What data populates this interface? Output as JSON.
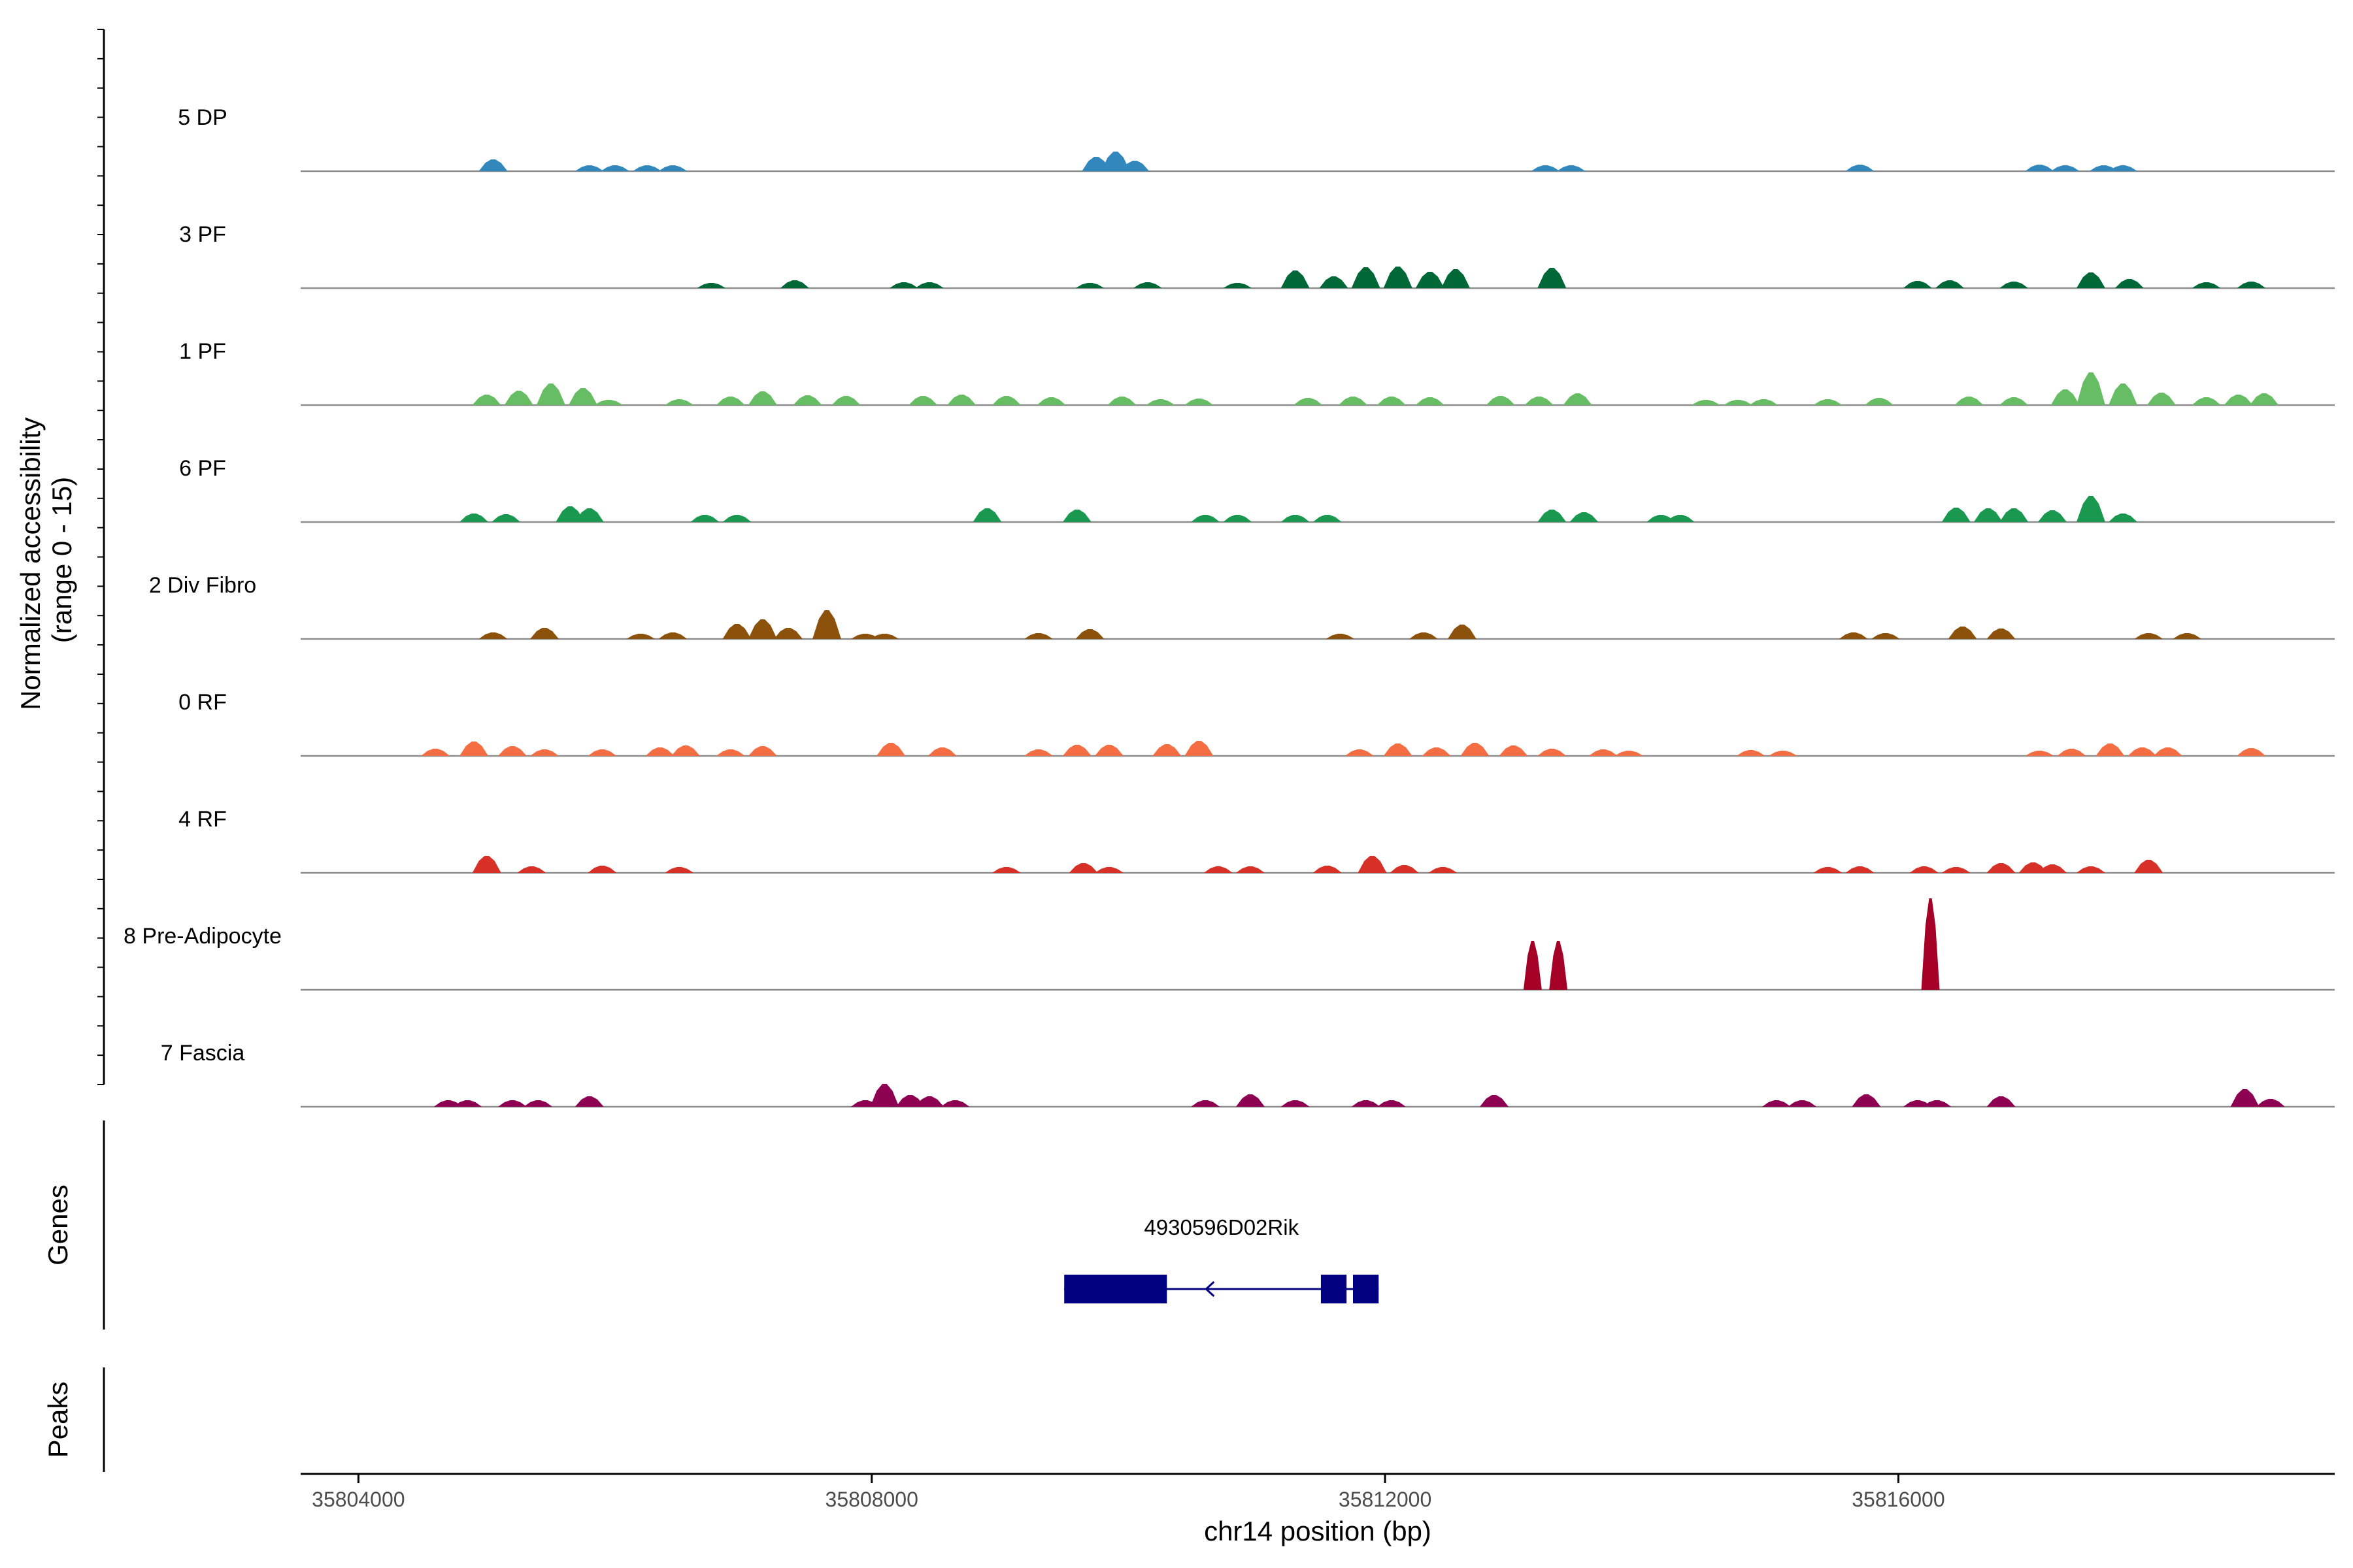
{
  "chart_data": {
    "type": "area",
    "title": "",
    "ylabel": "Normalized accessibility",
    "ylabel_range": "(range 0 - 15)",
    "ylim": [
      0,
      15
    ],
    "xlabel": "chr14 position (bp)",
    "xlim": [
      35803550,
      35819400
    ],
    "xticks": [
      35804000,
      35808000,
      35812000,
      35816000
    ],
    "xtick_labels": [
      "35804000",
      "35808000",
      "35812000",
      "35816000"
    ],
    "series": [
      {
        "name": "5 DP",
        "color": "#3288BD",
        "peaks": [
          [
            35805050,
            1.8
          ],
          [
            35805800,
            0.9
          ],
          [
            35806000,
            0.9
          ],
          [
            35806250,
            0.9
          ],
          [
            35806450,
            0.9
          ],
          [
            35809750,
            2.2
          ],
          [
            35809900,
            3.0
          ],
          [
            35810050,
            1.6
          ],
          [
            35813250,
            0.9
          ],
          [
            35813450,
            0.9
          ],
          [
            35815700,
            1.0
          ],
          [
            35817100,
            1.0
          ],
          [
            35817300,
            0.9
          ],
          [
            35817600,
            0.9
          ],
          [
            35817750,
            0.9
          ]
        ]
      },
      {
        "name": "3 PF",
        "color": "#006837",
        "peaks": [
          [
            35806750,
            0.8
          ],
          [
            35807400,
            1.2
          ],
          [
            35808250,
            0.9
          ],
          [
            35808450,
            0.9
          ],
          [
            35809700,
            0.8
          ],
          [
            35810150,
            0.9
          ],
          [
            35810850,
            0.8
          ],
          [
            35811300,
            2.7
          ],
          [
            35811600,
            1.8
          ],
          [
            35811850,
            3.2
          ],
          [
            35812100,
            3.3
          ],
          [
            35812350,
            2.5
          ],
          [
            35812550,
            2.9
          ],
          [
            35813300,
            3.1
          ],
          [
            35816150,
            1.1
          ],
          [
            35816400,
            1.2
          ],
          [
            35816900,
            1.0
          ],
          [
            35817500,
            2.4
          ],
          [
            35817800,
            1.4
          ],
          [
            35818400,
            0.9
          ],
          [
            35818750,
            1.0
          ]
        ]
      },
      {
        "name": "1 PF",
        "color": "#66BD63",
        "peaks": [
          [
            35805000,
            1.6
          ],
          [
            35805250,
            2.2
          ],
          [
            35805500,
            3.3
          ],
          [
            35805750,
            2.6
          ],
          [
            35805950,
            0.8
          ],
          [
            35806500,
            0.9
          ],
          [
            35806900,
            1.3
          ],
          [
            35807150,
            2.1
          ],
          [
            35807500,
            1.5
          ],
          [
            35807800,
            1.4
          ],
          [
            35808400,
            1.4
          ],
          [
            35808700,
            1.6
          ],
          [
            35809050,
            1.4
          ],
          [
            35809400,
            1.2
          ],
          [
            35809950,
            1.3
          ],
          [
            35810250,
            0.9
          ],
          [
            35810550,
            1.0
          ],
          [
            35811400,
            1.1
          ],
          [
            35811750,
            1.3
          ],
          [
            35812050,
            1.3
          ],
          [
            35812350,
            1.2
          ],
          [
            35812900,
            1.4
          ],
          [
            35813200,
            1.3
          ],
          [
            35813500,
            1.8
          ],
          [
            35814500,
            0.8
          ],
          [
            35814750,
            0.8
          ],
          [
            35814950,
            0.9
          ],
          [
            35815450,
            0.9
          ],
          [
            35815850,
            1.1
          ],
          [
            35816550,
            1.3
          ],
          [
            35816900,
            1.2
          ],
          [
            35817300,
            2.4
          ],
          [
            35817500,
            5.0
          ],
          [
            35817750,
            3.3
          ],
          [
            35818050,
            1.9
          ],
          [
            35818400,
            1.2
          ],
          [
            35818650,
            1.6
          ],
          [
            35818850,
            1.8
          ]
        ]
      },
      {
        "name": "6 PF",
        "color": "#1A9850",
        "peaks": [
          [
            35804900,
            1.3
          ],
          [
            35805150,
            1.2
          ],
          [
            35805650,
            2.4
          ],
          [
            35805800,
            2.1
          ],
          [
            35806700,
            1.1
          ],
          [
            35806950,
            1.1
          ],
          [
            35808900,
            2.1
          ],
          [
            35809600,
            1.9
          ],
          [
            35810600,
            1.1
          ],
          [
            35810850,
            1.1
          ],
          [
            35811300,
            1.1
          ],
          [
            35811550,
            1.1
          ],
          [
            35813300,
            1.9
          ],
          [
            35813550,
            1.5
          ],
          [
            35814150,
            1.1
          ],
          [
            35814300,
            1.1
          ],
          [
            35816450,
            2.2
          ],
          [
            35816700,
            2.1
          ],
          [
            35816900,
            2.1
          ],
          [
            35817200,
            1.8
          ],
          [
            35817500,
            4.0
          ],
          [
            35817750,
            1.3
          ]
        ]
      },
      {
        "name": "2 Div Fibro",
        "color": "#8C510A",
        "peaks": [
          [
            35805050,
            1.0
          ],
          [
            35805450,
            1.7
          ],
          [
            35806200,
            0.8
          ],
          [
            35806450,
            1.0
          ],
          [
            35806950,
            2.3
          ],
          [
            35807150,
            3.0
          ],
          [
            35807350,
            1.7
          ],
          [
            35807650,
            4.4
          ],
          [
            35807950,
            0.8
          ],
          [
            35808100,
            0.8
          ],
          [
            35809300,
            0.9
          ],
          [
            35809700,
            1.5
          ],
          [
            35811650,
            0.8
          ],
          [
            35812300,
            1.0
          ],
          [
            35812600,
            2.2
          ],
          [
            35815650,
            1.0
          ],
          [
            35815900,
            0.9
          ],
          [
            35816500,
            1.9
          ],
          [
            35816800,
            1.6
          ],
          [
            35817950,
            0.9
          ],
          [
            35818250,
            0.9
          ]
        ]
      },
      {
        "name": "0 RF",
        "color": "#F46D43",
        "peaks": [
          [
            35804600,
            1.1
          ],
          [
            35804900,
            2.2
          ],
          [
            35805200,
            1.5
          ],
          [
            35805450,
            1.0
          ],
          [
            35805900,
            1.0
          ],
          [
            35806350,
            1.3
          ],
          [
            35806550,
            1.6
          ],
          [
            35806900,
            1.0
          ],
          [
            35807150,
            1.5
          ],
          [
            35808150,
            2.0
          ],
          [
            35808550,
            1.3
          ],
          [
            35809300,
            1.0
          ],
          [
            35809600,
            1.7
          ],
          [
            35809850,
            1.7
          ],
          [
            35810300,
            1.8
          ],
          [
            35810550,
            2.3
          ],
          [
            35811800,
            1.0
          ],
          [
            35812100,
            1.9
          ],
          [
            35812400,
            1.3
          ],
          [
            35812700,
            2.0
          ],
          [
            35813000,
            1.6
          ],
          [
            35813300,
            1.1
          ],
          [
            35813700,
            1.0
          ],
          [
            35813900,
            0.8
          ],
          [
            35814850,
            0.9
          ],
          [
            35815100,
            0.8
          ],
          [
            35817100,
            0.8
          ],
          [
            35817350,
            1.1
          ],
          [
            35817650,
            1.9
          ],
          [
            35817900,
            1.3
          ],
          [
            35818100,
            1.3
          ],
          [
            35818750,
            1.2
          ]
        ]
      },
      {
        "name": "4 RF",
        "color": "#D73027",
        "peaks": [
          [
            35805000,
            2.6
          ],
          [
            35805350,
            1.0
          ],
          [
            35805900,
            1.1
          ],
          [
            35806500,
            0.9
          ],
          [
            35809050,
            0.9
          ],
          [
            35809650,
            1.5
          ],
          [
            35809850,
            0.9
          ],
          [
            35810700,
            1.0
          ],
          [
            35810950,
            1.0
          ],
          [
            35811550,
            1.1
          ],
          [
            35811900,
            2.6
          ],
          [
            35812150,
            1.2
          ],
          [
            35812450,
            0.9
          ],
          [
            35815450,
            0.9
          ],
          [
            35815700,
            1.0
          ],
          [
            35816200,
            1.0
          ],
          [
            35816450,
            0.9
          ],
          [
            35816800,
            1.5
          ],
          [
            35817050,
            1.6
          ],
          [
            35817200,
            1.3
          ],
          [
            35817500,
            1.0
          ],
          [
            35817950,
            2.0
          ]
        ]
      },
      {
        "name": "8 Pre-Adipocyte",
        "color": "#A50026",
        "peaks": [
          [
            35813150,
            7.5
          ],
          [
            35813350,
            7.5
          ],
          [
            35816250,
            14.0
          ]
        ]
      },
      {
        "name": "7 Fascia",
        "color": "#8E0152",
        "peaks": [
          [
            35804700,
            1.0
          ],
          [
            35804850,
            1.0
          ],
          [
            35805200,
            1.0
          ],
          [
            35805400,
            1.0
          ],
          [
            35805800,
            1.6
          ],
          [
            35807950,
            1.0
          ],
          [
            35808100,
            3.5
          ],
          [
            35808300,
            1.8
          ],
          [
            35808450,
            1.6
          ],
          [
            35808650,
            1.0
          ],
          [
            35810600,
            1.0
          ],
          [
            35810950,
            1.9
          ],
          [
            35811300,
            1.0
          ],
          [
            35811850,
            1.0
          ],
          [
            35812050,
            1.0
          ],
          [
            35812850,
            1.8
          ],
          [
            35815050,
            1.0
          ],
          [
            35815250,
            1.0
          ],
          [
            35815750,
            1.9
          ],
          [
            35816150,
            1.0
          ],
          [
            35816300,
            1.0
          ],
          [
            35816800,
            1.6
          ],
          [
            35818700,
            2.7
          ],
          [
            35818900,
            1.2
          ]
        ]
      }
    ],
    "genes": [
      {
        "name": "4930596D02Rik",
        "start": 35809500,
        "end": 35811950,
        "strand": "-",
        "color": "#000080",
        "exons": [
          [
            35809500,
            35810300
          ],
          [
            35811500,
            35811700
          ],
          [
            35811750,
            35811950
          ]
        ]
      }
    ],
    "panels": [
      "Genes",
      "Peaks"
    ]
  }
}
